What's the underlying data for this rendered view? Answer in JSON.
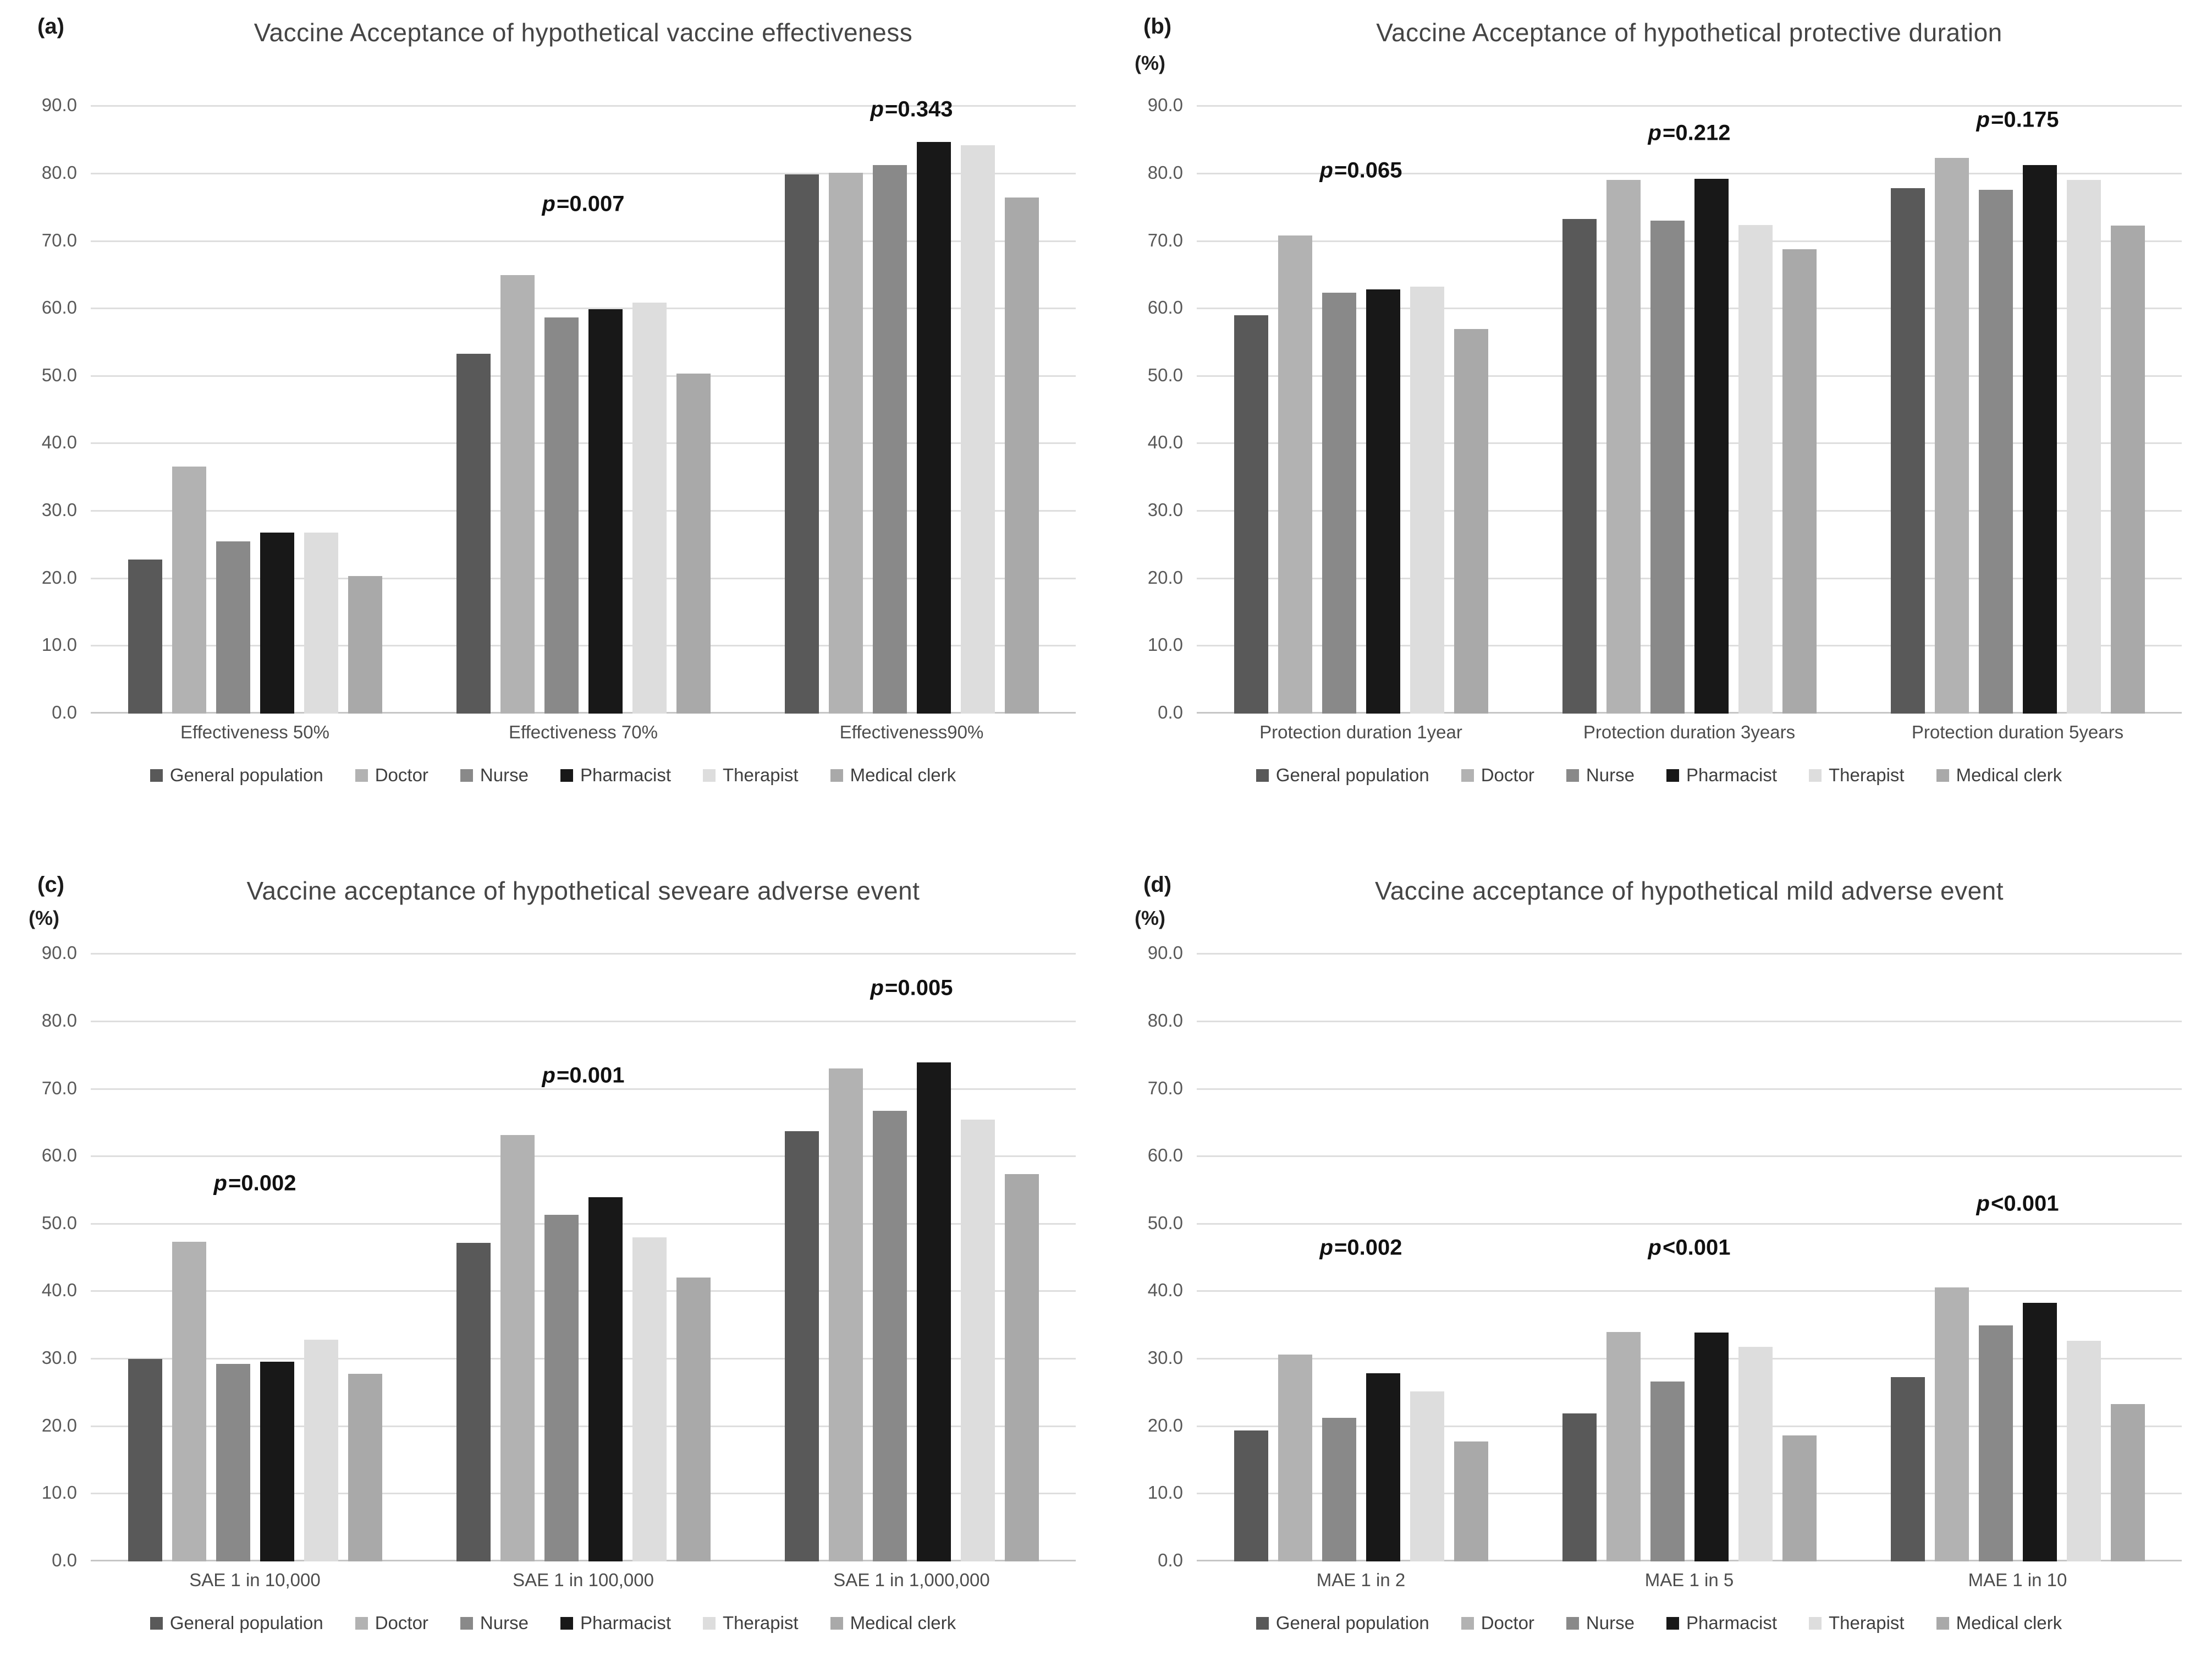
{
  "figure": {
    "description_visible_text_only": true,
    "y_axis_unit_label": "(%)"
  },
  "chart_data": [
    {
      "type": "bar",
      "panel_label": "(a)",
      "title": "Vaccine Acceptance of hypothetical vaccine effectiveness",
      "y_unit_label": "",
      "ylim": [
        0,
        90
      ],
      "ytick_step": 10,
      "y_tick_labels": [
        "90.0",
        "80.0",
        "70.0",
        "60.0",
        "50.0",
        "40.0",
        "30.0",
        "20.0",
        "10.0",
        "0.0"
      ],
      "grid": true,
      "legend_position": "bottom",
      "categories": [
        "Effectiveness 50%",
        "Effectiveness 70%",
        "Effectiveness90%"
      ],
      "series": [
        {
          "name": "General population",
          "color": "#595959",
          "values": [
            22.8,
            53.3,
            79.9
          ]
        },
        {
          "name": "Doctor",
          "color": "#b2b2b2",
          "values": [
            36.6,
            65.0,
            80.2
          ]
        },
        {
          "name": "Nurse",
          "color": "#898989",
          "values": [
            25.5,
            58.7,
            81.3
          ]
        },
        {
          "name": "Pharmacist",
          "color": "#181818",
          "values": [
            26.8,
            59.9,
            84.7
          ]
        },
        {
          "name": "Therapist",
          "color": "#dddddd",
          "values": [
            26.8,
            60.9,
            84.2
          ]
        },
        {
          "name": "Medical clerk",
          "color": "#a9a9a9",
          "values": [
            20.4,
            50.4,
            76.5
          ]
        }
      ],
      "annotations": [
        {
          "text": "p=0.007",
          "group_index": 1,
          "y": 75.5
        },
        {
          "text": "p=0.343",
          "group_index": 2,
          "y": 89.5
        }
      ]
    },
    {
      "type": "bar",
      "panel_label": "(b)",
      "title": "Vaccine Acceptance of hypothetical protective duration",
      "y_unit_label": "(%)",
      "ylim": [
        0,
        90
      ],
      "ytick_step": 10,
      "y_tick_labels": [
        "90.0",
        "80.0",
        "70.0",
        "60.0",
        "50.0",
        "40.0",
        "30.0",
        "20.0",
        "10.0",
        "0.0"
      ],
      "grid": true,
      "legend_position": "bottom",
      "categories": [
        "Protection duration 1year",
        "Protection duration 3years",
        "Protection duration 5years"
      ],
      "series": [
        {
          "name": "General population",
          "color": "#595959",
          "values": [
            59.0,
            73.3,
            77.9
          ]
        },
        {
          "name": "Doctor",
          "color": "#b2b2b2",
          "values": [
            70.9,
            79.1,
            82.4
          ]
        },
        {
          "name": "Nurse",
          "color": "#898989",
          "values": [
            62.4,
            73.1,
            77.6
          ]
        },
        {
          "name": "Pharmacist",
          "color": "#181818",
          "values": [
            62.9,
            79.3,
            81.3
          ]
        },
        {
          "name": "Therapist",
          "color": "#dddddd",
          "values": [
            63.3,
            72.4,
            79.1
          ]
        },
        {
          "name": "Medical clerk",
          "color": "#a9a9a9",
          "values": [
            57.0,
            68.8,
            72.3
          ]
        }
      ],
      "annotations": [
        {
          "text": "p=0.065",
          "group_index": 0,
          "y": 80.5
        },
        {
          "text": "p=0.212",
          "group_index": 1,
          "y": 86.0
        },
        {
          "text": "p=0.175",
          "group_index": 2,
          "y": 88.0
        }
      ]
    },
    {
      "type": "bar",
      "panel_label": "(c)",
      "title": "Vaccine acceptance of hypothetical seveare adverse event",
      "y_unit_label": "(%)",
      "ylim": [
        0,
        90
      ],
      "ytick_step": 10,
      "y_tick_labels": [
        "90.0",
        "80.0",
        "70.0",
        "60.0",
        "50.0",
        "40.0",
        "30.0",
        "20.0",
        "10.0",
        "0.0"
      ],
      "grid": true,
      "legend_position": "bottom",
      "categories": [
        "SAE 1 in 10,000",
        "SAE 1 in 100,000",
        "SAE 1 in 1,000,000"
      ],
      "series": [
        {
          "name": "General population",
          "color": "#595959",
          "values": [
            30.0,
            47.2,
            63.8
          ]
        },
        {
          "name": "Doctor",
          "color": "#b2b2b2",
          "values": [
            47.4,
            63.2,
            73.1
          ]
        },
        {
          "name": "Nurse",
          "color": "#898989",
          "values": [
            29.3,
            51.4,
            66.8
          ]
        },
        {
          "name": "Pharmacist",
          "color": "#181818",
          "values": [
            29.6,
            54.0,
            74.0
          ]
        },
        {
          "name": "Therapist",
          "color": "#dddddd",
          "values": [
            32.9,
            48.0,
            65.5
          ]
        },
        {
          "name": "Medical clerk",
          "color": "#a9a9a9",
          "values": [
            27.8,
            42.1,
            57.4
          ]
        }
      ],
      "annotations": [
        {
          "text": "p=0.002",
          "group_index": 0,
          "y": 56.0
        },
        {
          "text": "p=0.001",
          "group_index": 1,
          "y": 72.0
        },
        {
          "text": "p=0.005",
          "group_index": 2,
          "y": 85.0
        }
      ]
    },
    {
      "type": "bar",
      "panel_label": "(d)",
      "title": "Vaccine acceptance of hypothetical mild adverse event",
      "y_unit_label": "(%)",
      "ylim": [
        0,
        90
      ],
      "ytick_step": 10,
      "y_tick_labels": [
        "90.0",
        "80.0",
        "70.0",
        "60.0",
        "50.0",
        "40.0",
        "30.0",
        "20.0",
        "10.0",
        "0.0"
      ],
      "grid": true,
      "legend_position": "bottom",
      "categories": [
        "MAE 1 in 2",
        "MAE 1 in 5",
        "MAE 1 in 10"
      ],
      "series": [
        {
          "name": "General population",
          "color": "#595959",
          "values": [
            19.4,
            21.9,
            27.3
          ]
        },
        {
          "name": "Doctor",
          "color": "#b2b2b2",
          "values": [
            30.7,
            34.0,
            40.6
          ]
        },
        {
          "name": "Nurse",
          "color": "#898989",
          "values": [
            21.3,
            26.7,
            35.0
          ]
        },
        {
          "name": "Pharmacist",
          "color": "#181818",
          "values": [
            27.9,
            33.9,
            38.3
          ]
        },
        {
          "name": "Therapist",
          "color": "#dddddd",
          "values": [
            25.2,
            31.8,
            32.7
          ]
        },
        {
          "name": "Medical clerk",
          "color": "#a9a9a9",
          "values": [
            17.8,
            18.7,
            23.3
          ]
        }
      ],
      "annotations": [
        {
          "text": "p=0.002",
          "group_index": 0,
          "y": 46.5
        },
        {
          "text": "p<0.001",
          "group_index": 1,
          "y": 46.5
        },
        {
          "text": "p<0.001",
          "group_index": 2,
          "y": 53.0
        }
      ]
    }
  ]
}
